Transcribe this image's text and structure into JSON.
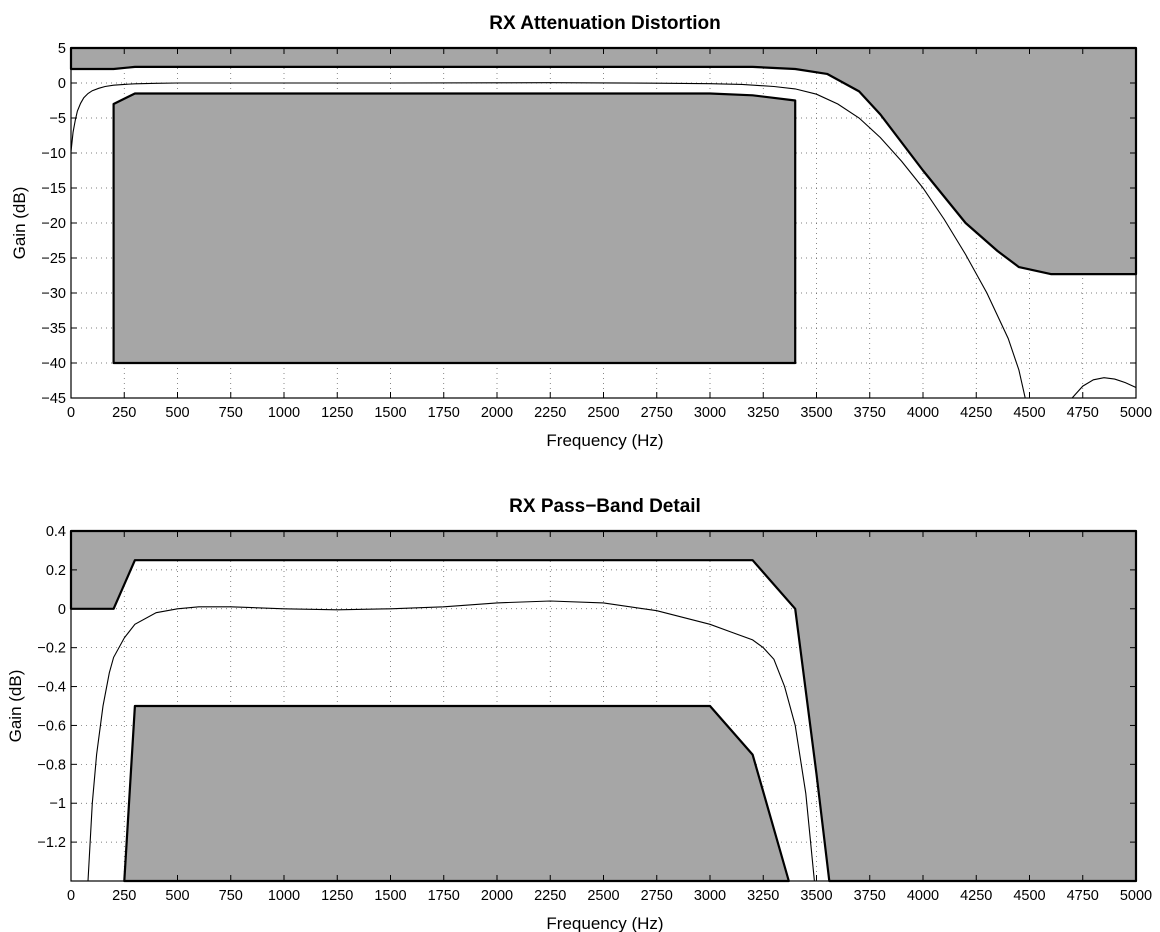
{
  "figure": {
    "background": "#ffffff",
    "mask_color": "#a6a6a6"
  },
  "chart_data": [
    {
      "type": "line",
      "title": "RX Attenuation Distortion",
      "xlabel": "Frequency  (Hz)",
      "ylabel": "Gain (dB)",
      "xlim": [
        0,
        5000
      ],
      "ylim": [
        -45,
        5
      ],
      "grid": true,
      "xticks": [
        0,
        250,
        500,
        750,
        1000,
        1250,
        1500,
        1750,
        2000,
        2250,
        2500,
        2750,
        3000,
        3250,
        3500,
        3750,
        4000,
        4250,
        4500,
        4750,
        5000
      ],
      "yticks": [
        5,
        0,
        -5,
        -10,
        -15,
        -20,
        -25,
        -30,
        -35,
        -40,
        -45
      ],
      "ytick_labels": [
        "5",
        "0",
        "−5",
        "−10",
        "−15",
        "−20",
        "−25",
        "−30",
        "−35",
        "−40",
        "−45"
      ],
      "masks": [
        {
          "name": "upper limit mask",
          "edge": "top",
          "x": [
            0,
            200,
            300,
            3200,
            3400,
            3550,
            3700,
            3800,
            4000,
            4200,
            4350,
            4450,
            4600,
            5000
          ],
          "y": [
            2.0,
            2.0,
            2.3,
            2.3,
            2.0,
            1.3,
            -1.2,
            -4.5,
            -12.5,
            -20.0,
            -24.0,
            -26.3,
            -27.3,
            -27.3
          ]
        },
        {
          "name": "lower limit mask",
          "edge": "closed",
          "x": [
            200,
            300,
            3000,
            3200,
            3400,
            3400,
            200
          ],
          "y": [
            -3.0,
            -1.5,
            -1.5,
            -1.75,
            -2.5,
            -40,
            -40
          ]
        }
      ],
      "series": [
        {
          "x": [
            0,
            10,
            20,
            30,
            45,
            60,
            80,
            100,
            130,
            160,
            200,
            250,
            300,
            400,
            500,
            750,
            1000,
            1500,
            2000,
            2250,
            2500,
            2750,
            3000,
            3150,
            3300,
            3400,
            3500,
            3600,
            3700,
            3800,
            3900,
            4000,
            4100,
            4200,
            4300,
            4400,
            4450,
            4480
          ],
          "y": [
            -9.8,
            -7.0,
            -5.3,
            -4.0,
            -2.9,
            -2.1,
            -1.5,
            -1.1,
            -0.75,
            -0.5,
            -0.32,
            -0.2,
            -0.12,
            -0.04,
            0.0,
            0.0,
            0.0,
            0.0,
            0.03,
            0.04,
            0.02,
            -0.03,
            -0.1,
            -0.2,
            -0.5,
            -0.85,
            -1.6,
            -3.0,
            -5.0,
            -7.8,
            -11.2,
            -15.0,
            -19.5,
            -24.5,
            -30.0,
            -36.5,
            -41.0,
            -45.0
          ]
        },
        {
          "x": [
            4700,
            4750,
            4800,
            4850,
            4900,
            4950,
            5000
          ],
          "y": [
            -45.0,
            -43.3,
            -42.4,
            -42.1,
            -42.3,
            -42.8,
            -43.5
          ]
        }
      ]
    },
    {
      "type": "line",
      "title": "RX Pass−Band Detail",
      "xlabel": "Frequency  (Hz)",
      "ylabel": "Gain (dB)",
      "xlim": [
        0,
        5000
      ],
      "ylim": [
        -1.4,
        0.4
      ],
      "grid": true,
      "xticks": [
        0,
        250,
        500,
        750,
        1000,
        1250,
        1500,
        1750,
        2000,
        2250,
        2500,
        2750,
        3000,
        3250,
        3500,
        3750,
        4000,
        4250,
        4500,
        4750,
        5000
      ],
      "yticks": [
        0.4,
        0.2,
        0,
        -0.2,
        -0.4,
        -0.6,
        -0.8,
        -1,
        -1.2
      ],
      "ytick_labels": [
        "0.4",
        "0.2",
        "0",
        "−0.2",
        "−0.4",
        "−0.6",
        "−0.8",
        "−1",
        "−1.2"
      ],
      "masks": [
        {
          "name": "upper limit mask",
          "edge": "top",
          "x": [
            0,
            200,
            300,
            3200,
            3400,
            3500,
            3560,
            5000
          ],
          "y": [
            0.0,
            0.0,
            0.25,
            0.25,
            0.0,
            -0.85,
            -1.4,
            -1.4
          ]
        },
        {
          "name": "lower limit mask",
          "edge": "bottom",
          "x": [
            250,
            300,
            3000,
            3200,
            3370
          ],
          "y": [
            -1.4,
            -0.5,
            -0.5,
            -0.75,
            -1.4
          ]
        }
      ],
      "series": [
        {
          "x": [
            80,
            100,
            120,
            150,
            180,
            200,
            250,
            300,
            400,
            500,
            600,
            750,
            1000,
            1250,
            1500,
            1750,
            2000,
            2250,
            2500,
            2750,
            3000,
            3100,
            3200,
            3250,
            3300,
            3350,
            3400,
            3450,
            3490
          ],
          "y": [
            -1.4,
            -1.0,
            -0.75,
            -0.5,
            -0.33,
            -0.25,
            -0.15,
            -0.08,
            -0.02,
            0.0,
            0.01,
            0.01,
            0.0,
            -0.005,
            0.0,
            0.01,
            0.03,
            0.04,
            0.03,
            -0.01,
            -0.08,
            -0.12,
            -0.16,
            -0.2,
            -0.26,
            -0.4,
            -0.6,
            -0.95,
            -1.4
          ]
        }
      ]
    }
  ]
}
